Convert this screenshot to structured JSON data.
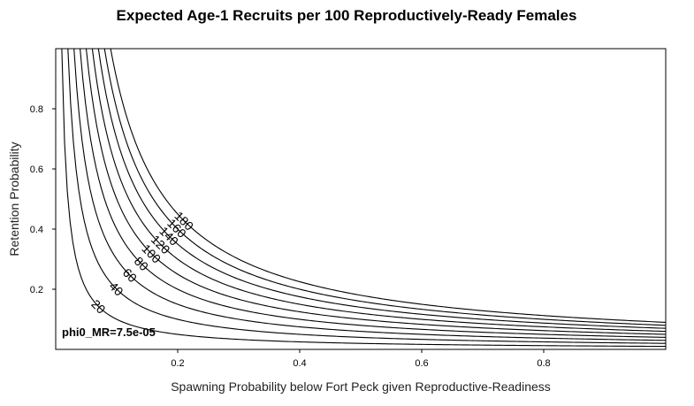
{
  "chart_data": {
    "type": "contour",
    "title": "Expected Age-1 Recruits per 100 Reproductively-Ready Females",
    "xlabel": "Spawning Probability below Fort Peck given Reproductive-Readiness",
    "ylabel": "Retention Probability",
    "xlim": [
      0.0,
      1.0
    ],
    "ylim": [
      0.0,
      1.0
    ],
    "x_ticks": [
      "0.2",
      "0.4",
      "0.6",
      "0.8"
    ],
    "y_ticks": [
      "0.2",
      "0.4",
      "0.6",
      "0.8"
    ],
    "annotation": "phi0_MR=7.5e-05",
    "contour_levels": [
      20,
      40,
      60,
      80,
      100,
      120,
      140,
      160,
      180
    ],
    "contour_labels": [
      "20",
      "40",
      "60",
      "80",
      "100",
      "120",
      "140",
      "160",
      "180"
    ],
    "contour_model": "x * y = level / 2000",
    "grid": false,
    "legend": "none"
  }
}
